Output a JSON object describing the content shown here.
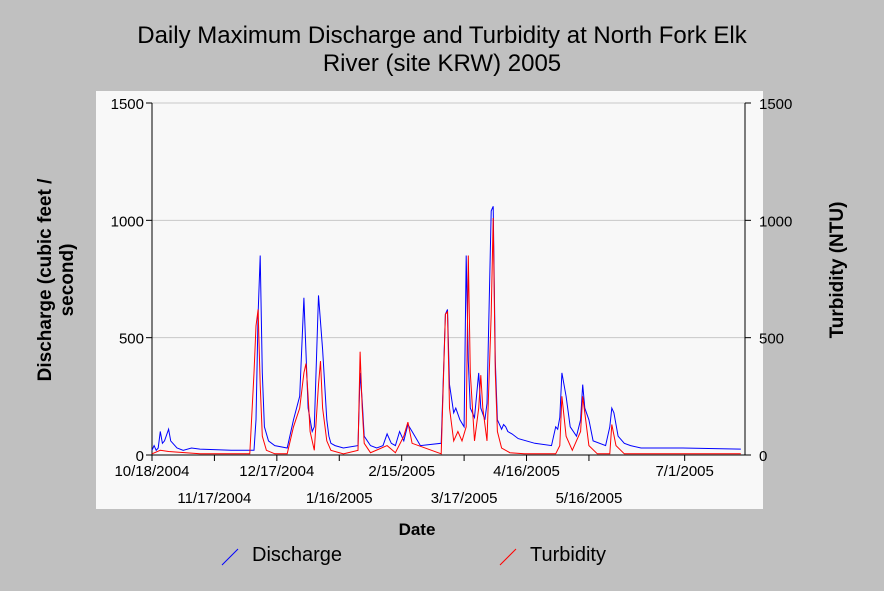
{
  "chart_data": {
    "type": "line",
    "title": "Daily Maximum Discharge and Turbidity at North Fork Elk River (site KRW) 2005",
    "title_lines": [
      "Daily Maximum Discharge and Turbidity at North Fork Elk",
      "River (site KRW) 2005"
    ],
    "xlabel": "Date",
    "ylabel_left_lines": [
      "Discharge (cubic feet /",
      "second)"
    ],
    "ylabel_right": "Turbidity (NTU)",
    "ylim_left": [
      0,
      1500
    ],
    "ylim_right": [
      0,
      1500
    ],
    "yticks": [
      "0",
      "500",
      "1000",
      "1500"
    ],
    "xlim": [
      "2004-10-18",
      "2005-07-30"
    ],
    "xticks_upper": [
      "10/18/2004",
      "12/17/2004",
      "2/15/2005",
      "4/16/2005",
      "7/1/2005"
    ],
    "xticks_lower": [
      "11/17/2004",
      "1/16/2005",
      "3/17/2005",
      "5/16/2005"
    ],
    "grid": true,
    "legend_placement": "bottom",
    "colors": {
      "discharge": "#0000ff",
      "turbidity": "#ff0000",
      "plot_bg": "#f8f8f8",
      "grid": "#c8c8c8"
    },
    "series": [
      {
        "name": "Discharge",
        "x": [
          "2004-10-18",
          "2004-10-19",
          "2004-10-20",
          "2004-10-21",
          "2004-10-22",
          "2004-10-23",
          "2004-10-24",
          "2004-10-26",
          "2004-10-27",
          "2004-10-30",
          "2004-11-02",
          "2004-11-06",
          "2004-11-10",
          "2004-11-25",
          "2004-12-06",
          "2004-12-07",
          "2004-12-08",
          "2004-12-09",
          "2004-12-10",
          "2004-12-11",
          "2004-12-13",
          "2004-12-16",
          "2004-12-22",
          "2004-12-25",
          "2004-12-28",
          "2004-12-30",
          "2005-01-01",
          "2005-01-03",
          "2005-01-04",
          "2005-01-06",
          "2005-01-08",
          "2005-01-10",
          "2005-01-11",
          "2005-01-12",
          "2005-01-14",
          "2005-01-18",
          "2005-01-25",
          "2005-01-26",
          "2005-01-27",
          "2005-01-28",
          "2005-01-31",
          "2005-02-03",
          "2005-02-06",
          "2005-02-08",
          "2005-02-10",
          "2005-02-12",
          "2005-02-14",
          "2005-02-16",
          "2005-02-18",
          "2005-02-20",
          "2005-02-24",
          "2005-03-06",
          "2005-03-08",
          "2005-03-09",
          "2005-03-10",
          "2005-03-12",
          "2005-03-13",
          "2005-03-15",
          "2005-03-17",
          "2005-03-18",
          "2005-03-19",
          "2005-03-20",
          "2005-03-22",
          "2005-03-24",
          "2005-03-25",
          "2005-03-27",
          "2005-03-28",
          "2005-03-30",
          "2005-03-31",
          "2005-04-01",
          "2005-04-02",
          "2005-04-04",
          "2005-04-05",
          "2005-04-06",
          "2005-04-07",
          "2005-04-09",
          "2005-04-12",
          "2005-04-20",
          "2005-04-28",
          "2005-04-30",
          "2005-05-01",
          "2005-05-02",
          "2005-05-03",
          "2005-05-05",
          "2005-05-07",
          "2005-05-10",
          "2005-05-12",
          "2005-05-13",
          "2005-05-14",
          "2005-05-16",
          "2005-05-18",
          "2005-05-24",
          "2005-05-26",
          "2005-05-27",
          "2005-05-28",
          "2005-05-30",
          "2005-06-02",
          "2005-06-05",
          "2005-06-10",
          "2005-06-30",
          "2005-07-28"
        ],
        "y": [
          20,
          40,
          20,
          30,
          100,
          50,
          60,
          110,
          60,
          30,
          20,
          30,
          25,
          20,
          20,
          150,
          600,
          850,
          350,
          120,
          60,
          40,
          30,
          150,
          250,
          670,
          200,
          100,
          120,
          680,
          450,
          150,
          80,
          50,
          40,
          30,
          40,
          350,
          230,
          80,
          40,
          30,
          40,
          90,
          50,
          40,
          100,
          60,
          130,
          100,
          40,
          50,
          600,
          620,
          300,
          180,
          200,
          150,
          120,
          850,
          400,
          200,
          160,
          350,
          200,
          150,
          220,
          1040,
          1060,
          400,
          150,
          110,
          130,
          120,
          100,
          90,
          70,
          50,
          40,
          120,
          110,
          160,
          350,
          250,
          120,
          80,
          150,
          300,
          200,
          150,
          60,
          40,
          120,
          200,
          180,
          80,
          50,
          40,
          30,
          30,
          25
        ]
      },
      {
        "name": "Turbidity",
        "x": [
          "2004-10-18",
          "2004-10-22",
          "2004-10-26",
          "2004-11-10",
          "2004-12-04",
          "2004-12-06",
          "2004-12-07",
          "2004-12-08",
          "2004-12-09",
          "2004-12-10",
          "2004-12-12",
          "2004-12-16",
          "2004-12-22",
          "2004-12-25",
          "2004-12-28",
          "2004-12-30",
          "2004-12-31",
          "2005-01-01",
          "2005-01-02",
          "2005-01-04",
          "2005-01-06",
          "2005-01-07",
          "2005-01-08",
          "2005-01-10",
          "2005-01-12",
          "2005-01-18",
          "2005-01-25",
          "2005-01-26",
          "2005-01-27",
          "2005-01-28",
          "2005-01-31",
          "2005-02-08",
          "2005-02-12",
          "2005-02-16",
          "2005-02-18",
          "2005-02-20",
          "2005-03-06",
          "2005-03-08",
          "2005-03-09",
          "2005-03-10",
          "2005-03-12",
          "2005-03-14",
          "2005-03-16",
          "2005-03-18",
          "2005-03-19",
          "2005-03-20",
          "2005-03-22",
          "2005-03-24",
          "2005-03-25",
          "2005-03-26",
          "2005-03-28",
          "2005-03-30",
          "2005-03-31",
          "2005-04-01",
          "2005-04-02",
          "2005-04-04",
          "2005-04-08",
          "2005-04-15",
          "2005-04-30",
          "2005-05-02",
          "2005-05-03",
          "2005-05-05",
          "2005-05-08",
          "2005-05-12",
          "2005-05-13",
          "2005-05-14",
          "2005-05-16",
          "2005-05-20",
          "2005-05-26",
          "2005-05-27",
          "2005-05-29",
          "2005-06-02",
          "2005-06-10",
          "2005-06-30",
          "2005-07-28"
        ],
        "y": [
          5,
          20,
          15,
          5,
          5,
          350,
          550,
          620,
          300,
          80,
          20,
          5,
          5,
          120,
          200,
          350,
          390,
          250,
          100,
          20,
          300,
          400,
          200,
          60,
          20,
          5,
          20,
          440,
          200,
          50,
          10,
          40,
          10,
          80,
          140,
          50,
          5,
          600,
          610,
          200,
          60,
          100,
          60,
          120,
          850,
          350,
          60,
          200,
          340,
          200,
          60,
          600,
          1010,
          350,
          100,
          30,
          10,
          5,
          5,
          40,
          250,
          80,
          20,
          100,
          250,
          180,
          40,
          5,
          5,
          130,
          40,
          5,
          5,
          5,
          5
        ]
      }
    ]
  }
}
